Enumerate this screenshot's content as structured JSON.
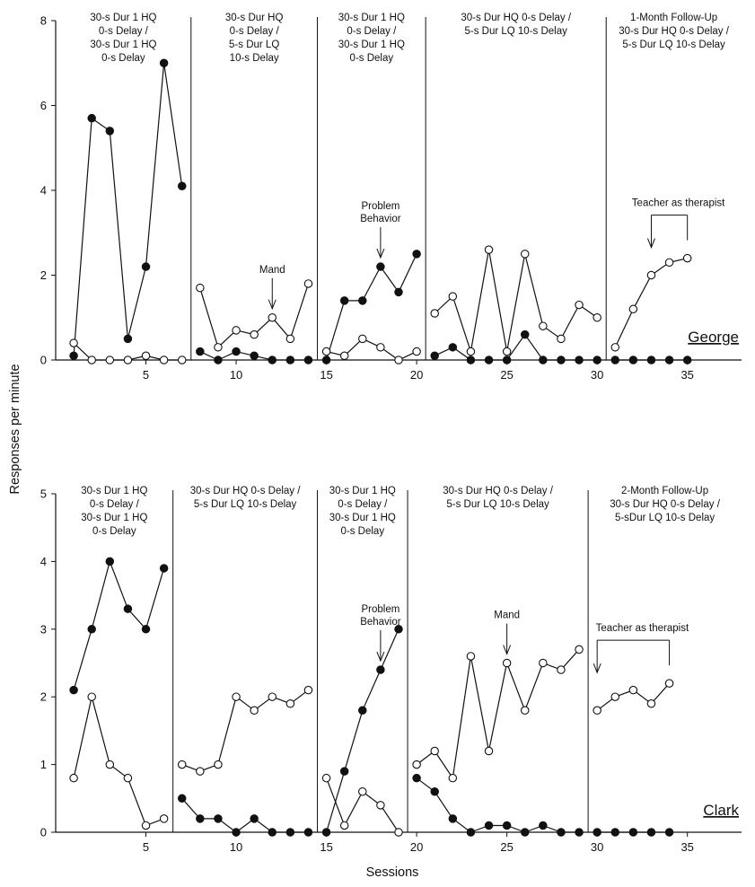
{
  "chart_data": [
    {
      "type": "line",
      "panel": "George",
      "subject_label": "George",
      "xlim": [
        0,
        38
      ],
      "ylim": [
        0,
        8
      ],
      "y_ticks": [
        0,
        2,
        4,
        6,
        8
      ],
      "x_ticks": [
        5,
        10,
        15,
        20,
        25,
        30,
        35
      ],
      "phase_lines_after_session": [
        7.5,
        14.5,
        20.5,
        30.5
      ],
      "phases": [
        {
          "label_lines": [
            "30-s Dur 1 HQ",
            "0-s Delay /",
            "30-s Dur 1 HQ",
            "0-s Delay"
          ],
          "x_start": 0,
          "x_end": 7.5
        },
        {
          "label_lines": [
            "30-s Dur HQ",
            "0-s Delay /",
            "5-s Dur LQ",
            "10-s Delay"
          ],
          "x_start": 7.5,
          "x_end": 14.5
        },
        {
          "label_lines": [
            "30-s Dur 1 HQ",
            "0-s Delay /",
            "30-s Dur 1 HQ",
            "0-s Delay"
          ],
          "x_start": 14.5,
          "x_end": 20.5
        },
        {
          "label_lines": [
            "30-s Dur HQ 0-s Delay /",
            "5-s Dur LQ 10-s Delay"
          ],
          "x_start": 20.5,
          "x_end": 30.5
        },
        {
          "label_lines": [
            "1-Month Follow-Up",
            "30-s Dur HQ 0-s Delay /",
            "5-s Dur LQ 10-s Delay"
          ],
          "x_start": 30.5,
          "x_end": 38
        }
      ],
      "series": [
        {
          "marker": "filled",
          "segments": [
            [
              [
                1,
                0.1
              ],
              [
                2,
                5.7
              ],
              [
                3,
                5.4
              ],
              [
                4,
                0.5
              ],
              [
                5,
                2.2
              ],
              [
                6,
                7.0
              ],
              [
                7,
                4.1
              ]
            ],
            [
              [
                8,
                0.2
              ],
              [
                9,
                0
              ],
              [
                10,
                0.2
              ],
              [
                11,
                0.1
              ],
              [
                12,
                0
              ],
              [
                13,
                0
              ],
              [
                14,
                0
              ]
            ],
            [
              [
                15,
                0
              ],
              [
                16,
                1.4
              ],
              [
                17,
                1.4
              ],
              [
                18,
                2.2
              ],
              [
                19,
                1.6
              ],
              [
                20,
                2.5
              ]
            ],
            [
              [
                21,
                0.1
              ],
              [
                22,
                0.3
              ],
              [
                23,
                0
              ],
              [
                24,
                0
              ],
              [
                25,
                0
              ],
              [
                26,
                0.6
              ],
              [
                27,
                0
              ],
              [
                28,
                0
              ],
              [
                29,
                0
              ],
              [
                30,
                0
              ]
            ],
            [
              [
                31,
                0
              ],
              [
                32,
                0
              ],
              [
                33,
                0
              ],
              [
                34,
                0
              ],
              [
                35,
                0
              ]
            ]
          ]
        },
        {
          "marker": "open",
          "segments": [
            [
              [
                1,
                0.4
              ],
              [
                2,
                0
              ],
              [
                3,
                0
              ],
              [
                4,
                0
              ],
              [
                5,
                0.1
              ],
              [
                6,
                0
              ],
              [
                7,
                0
              ]
            ],
            [
              [
                8,
                1.7
              ],
              [
                9,
                0.3
              ],
              [
                10,
                0.7
              ],
              [
                11,
                0.6
              ],
              [
                12,
                1.0
              ],
              [
                13,
                0.5
              ],
              [
                14,
                1.8
              ]
            ],
            [
              [
                15,
                0.2
              ],
              [
                16,
                0.1
              ],
              [
                17,
                0.5
              ],
              [
                18,
                0.3
              ],
              [
                19,
                0
              ],
              [
                20,
                0.2
              ]
            ],
            [
              [
                21,
                1.1
              ],
              [
                22,
                1.5
              ],
              [
                23,
                0.2
              ],
              [
                24,
                2.6
              ],
              [
                25,
                0.2
              ],
              [
                26,
                2.5
              ],
              [
                27,
                0.8
              ],
              [
                28,
                0.5
              ],
              [
                29,
                1.3
              ],
              [
                30,
                1.0
              ]
            ],
            [
              [
                31,
                0.3
              ],
              [
                32,
                1.2
              ],
              [
                33,
                2.0
              ],
              [
                34,
                2.3
              ],
              [
                35,
                2.4
              ]
            ]
          ]
        }
      ],
      "annotations": [
        {
          "type": "arrow",
          "lines": [
            "Mand"
          ],
          "x": 12,
          "y": 1.0
        },
        {
          "type": "arrow",
          "lines": [
            "Problem",
            "Behavior"
          ],
          "x": 18,
          "y": 2.2
        },
        {
          "type": "bracket",
          "lines": [
            "Teacher as therapist"
          ],
          "x_from": 33,
          "x_to": 35,
          "y": 2.4
        }
      ]
    },
    {
      "type": "line",
      "panel": "Clark",
      "subject_label": "Clark",
      "xlim": [
        0,
        38
      ],
      "ylim": [
        0,
        5
      ],
      "y_ticks": [
        0,
        1,
        2,
        3,
        4,
        5
      ],
      "x_ticks": [
        5,
        10,
        15,
        20,
        25,
        30,
        35
      ],
      "phase_lines_after_session": [
        6.5,
        14.5,
        19.5,
        29.5
      ],
      "phases": [
        {
          "label_lines": [
            "30-s Dur 1 HQ",
            "0-s Delay /",
            "30-s Dur 1 HQ",
            "0-s Delay"
          ],
          "x_start": 0,
          "x_end": 6.5
        },
        {
          "label_lines": [
            "30-s Dur HQ 0-s Delay /",
            "5-s Dur LQ 10-s Delay"
          ],
          "x_start": 6.5,
          "x_end": 14.5
        },
        {
          "label_lines": [
            "30-s Dur 1 HQ",
            "0-s Delay /",
            "30-s Dur 1 HQ",
            "0-s Delay"
          ],
          "x_start": 14.5,
          "x_end": 19.5
        },
        {
          "label_lines": [
            "30-s Dur HQ 0-s Delay /",
            "5-s Dur LQ 10-s Delay"
          ],
          "x_start": 19.5,
          "x_end": 29.5
        },
        {
          "label_lines": [
            "2-Month Follow-Up",
            "30-s Dur HQ 0-s Delay /",
            "5-sDur LQ 10-s Delay"
          ],
          "x_start": 29.5,
          "x_end": 38
        }
      ],
      "series": [
        {
          "marker": "filled",
          "segments": [
            [
              [
                1,
                2.1
              ],
              [
                2,
                3.0
              ],
              [
                3,
                4.0
              ],
              [
                4,
                3.3
              ],
              [
                5,
                3.0
              ],
              [
                6,
                3.9
              ]
            ],
            [
              [
                7,
                0.5
              ],
              [
                8,
                0.2
              ],
              [
                9,
                0.2
              ],
              [
                10,
                0
              ],
              [
                11,
                0.2
              ],
              [
                12,
                0
              ],
              [
                13,
                0
              ],
              [
                14,
                0
              ]
            ],
            [
              [
                15,
                0
              ],
              [
                16,
                0.9
              ],
              [
                17,
                1.8
              ],
              [
                18,
                2.4
              ],
              [
                19,
                3.0
              ]
            ],
            [
              [
                20,
                0.8
              ],
              [
                21,
                0.6
              ],
              [
                22,
                0.2
              ],
              [
                23,
                0
              ],
              [
                24,
                0.1
              ],
              [
                25,
                0.1
              ],
              [
                26,
                0
              ],
              [
                27,
                0.1
              ],
              [
                28,
                0
              ],
              [
                29,
                0
              ]
            ],
            [
              [
                30,
                0
              ],
              [
                31,
                0
              ],
              [
                32,
                0
              ],
              [
                33,
                0
              ],
              [
                34,
                0
              ]
            ]
          ]
        },
        {
          "marker": "open",
          "segments": [
            [
              [
                1,
                0.8
              ],
              [
                2,
                2.0
              ],
              [
                3,
                1.0
              ],
              [
                4,
                0.8
              ],
              [
                5,
                0.1
              ],
              [
                6,
                0.2
              ]
            ],
            [
              [
                7,
                1.0
              ],
              [
                8,
                0.9
              ],
              [
                9,
                1.0
              ],
              [
                10,
                2.0
              ],
              [
                11,
                1.8
              ],
              [
                12,
                2.0
              ],
              [
                13,
                1.9
              ],
              [
                14,
                2.1
              ]
            ],
            [
              [
                15,
                0.8
              ],
              [
                16,
                0.1
              ],
              [
                17,
                0.6
              ],
              [
                18,
                0.4
              ],
              [
                19,
                0
              ]
            ],
            [
              [
                20,
                1.0
              ],
              [
                21,
                1.2
              ],
              [
                22,
                0.8
              ],
              [
                23,
                2.6
              ],
              [
                24,
                1.2
              ],
              [
                25,
                2.5
              ],
              [
                26,
                1.8
              ],
              [
                27,
                2.5
              ],
              [
                28,
                2.4
              ],
              [
                29,
                2.7
              ]
            ],
            [
              [
                30,
                1.8
              ],
              [
                31,
                2.0
              ],
              [
                32,
                2.1
              ],
              [
                33,
                1.9
              ],
              [
                34,
                2.2
              ]
            ]
          ]
        }
      ],
      "annotations": [
        {
          "type": "arrow",
          "lines": [
            "Problem",
            "Behavior"
          ],
          "x": 18,
          "y": 2.4
        },
        {
          "type": "arrow",
          "lines": [
            "Mand"
          ],
          "x": 25,
          "y": 2.5
        },
        {
          "type": "bracket",
          "lines": [
            "Teacher as therapist"
          ],
          "x_from": 30,
          "x_to": 34,
          "y": 2.2
        }
      ]
    }
  ],
  "axes": {
    "ylabel": "Responses per minute",
    "xlabel": "Sessions"
  }
}
